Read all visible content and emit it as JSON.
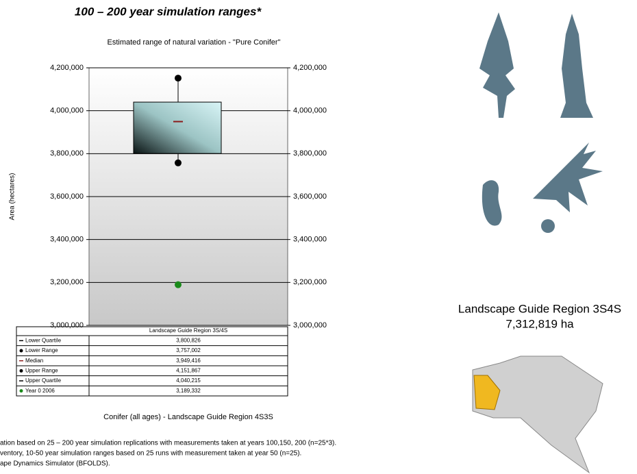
{
  "slide_title": "100 – 200 year simulation ranges*",
  "chart_data": {
    "type": "box",
    "title": "Estimated range of natural variation - \"Pure Conifer\"",
    "ylabel": "Area (hectares)",
    "xlabel": "Conifer (all ages) - Landscape Guide Region 4S3S",
    "categories": [
      "Landscape Guide Region 3S/4S"
    ],
    "ylim": [
      3000000,
      4200000
    ],
    "yticks": [
      {
        "value": 3000000,
        "label": "3,000,000"
      },
      {
        "value": 3200000,
        "label": "3,200,000"
      },
      {
        "value": 3400000,
        "label": "3,400,000"
      },
      {
        "value": 3600000,
        "label": "3,600,000"
      },
      {
        "value": 3800000,
        "label": "3,800,000"
      },
      {
        "value": 4000000,
        "label": "4,000,000"
      },
      {
        "value": 4200000,
        "label": "4,200,000"
      }
    ],
    "grid": true,
    "series": [
      {
        "name": "Lower Quartile",
        "marker": "dash",
        "color": "#000000",
        "values": [
          3800826
        ],
        "value_labels": [
          "3,800,826"
        ]
      },
      {
        "name": "Lower Range",
        "marker": "dot",
        "color": "#000000",
        "values": [
          3757002
        ],
        "value_labels": [
          "3,757,002"
        ]
      },
      {
        "name": "Median",
        "marker": "dash",
        "color": "#8b1a1a",
        "values": [
          3949416
        ],
        "value_labels": [
          "3,949,416"
        ]
      },
      {
        "name": "Upper Range",
        "marker": "dot",
        "color": "#000000",
        "values": [
          4151867
        ],
        "value_labels": [
          "4,151,867"
        ]
      },
      {
        "name": "Upper Quartile",
        "marker": "dash",
        "color": "#000000",
        "values": [
          4040215
        ],
        "value_labels": [
          "4,040,215"
        ]
      },
      {
        "name": "Year 0 2006",
        "marker": "dot",
        "color": "#1a8a1a",
        "values": [
          3189332
        ],
        "value_labels": [
          "3,189,332"
        ]
      }
    ]
  },
  "footnotes": [
    "ation based on 25 – 200 year simulation replications with  measurements taken at years 100,150, 200 (n=25*3).",
    "ventory, 10-50 year simulation ranges based on 25 runs with measurement taken at year 50 (n=25).",
    "ape Dynamics Simulator (BFOLDS)."
  ],
  "region": {
    "name": "Landscape Guide Region 3S4S",
    "area": "7,312,819 ha"
  }
}
